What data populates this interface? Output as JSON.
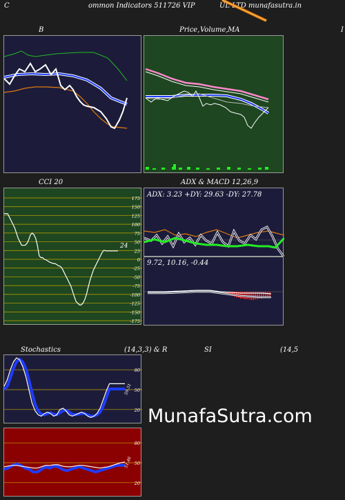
{
  "header": {
    "left_letter": "C",
    "text_a": "ommon  Indicators 511726  VIP",
    "text_b": "UL LTD munafasutra.in"
  },
  "panels": {
    "bollinger": {
      "title": "B"
    },
    "price": {
      "title_a": "Price,",
      "title_b": "Volume,",
      "title_c": "MA",
      "right_letter": "I"
    },
    "cci": {
      "title": "CCI 20",
      "value_label": "24",
      "ticks": [
        "175",
        "150",
        "125",
        "100",
        "75",
        "50",
        "25",
        "0",
        "-25",
        "-50",
        "-75",
        "-100",
        "-125",
        "-150",
        "-175"
      ]
    },
    "adx_macd": {
      "title": "ADX  & MACD 12,26,9",
      "adx_text": "ADX: 3.23 +DY: 29.63 -DY: 27.78",
      "macd_text": "9.72,  10.16,  -0.44"
    },
    "stochastics": {
      "title_a": "Stochastics",
      "title_b": "(14,3,3) & R",
      "ticks": [
        "80",
        "50",
        "20"
      ],
      "value_label": "59,51"
    },
    "rsi": {
      "title_a": "SI",
      "title_b": "(14,5",
      "ticks": [
        "80",
        "50",
        "20"
      ],
      "value_label": "51,46"
    }
  },
  "watermark": "MunafaSutra.com",
  "colors": {
    "navy": "#1c1c3a",
    "green_bg": "#1e4620",
    "red_bg": "#8b0000",
    "white": "#ffffff",
    "blue": "#1e3cff",
    "orange": "#e07a10",
    "lime": "#22ee22",
    "pink": "#ff88cc"
  },
  "chart_data": [
    {
      "type": "line",
      "title": "CCI 20",
      "ylim": [
        -175,
        175
      ],
      "x": [
        0,
        1,
        2,
        3,
        4,
        5,
        6,
        7,
        8,
        9,
        10,
        11,
        12,
        13,
        14,
        15,
        16,
        17,
        18,
        19,
        20,
        21,
        22,
        23,
        24,
        25,
        26,
        27,
        28,
        29,
        30,
        31,
        32,
        33,
        34,
        35,
        36,
        37,
        38,
        39,
        40,
        41,
        42,
        43,
        44,
        45,
        46,
        47,
        48,
        49,
        50,
        51,
        52,
        53,
        54,
        55,
        56,
        57,
        58,
        59,
        60,
        61,
        62,
        63,
        64,
        65
      ],
      "series": [
        {
          "values": [
            130,
            130,
            130,
            120,
            110,
            100,
            90,
            75,
            60,
            50,
            40,
            40,
            40,
            45,
            55,
            70,
            75,
            70,
            60,
            40,
            10,
            5,
            5,
            0,
            -2,
            -5,
            -8,
            -10,
            -12,
            -12,
            -15,
            -18,
            -20,
            -25,
            -35,
            -45,
            -55,
            -65,
            -75,
            -90,
            -105,
            -120,
            -125,
            -130,
            -130,
            -125,
            -115,
            -100,
            -80,
            -60,
            -45,
            -30,
            -20,
            -10,
            0,
            10,
            20,
            26,
            24,
            24,
            24,
            24,
            24,
            24,
            24,
            24
          ]
        }
      ]
    },
    {
      "type": "line",
      "title": "Stochastics (14,3,3)",
      "ylim": [
        0,
        100
      ],
      "x": [
        0,
        1,
        2,
        3,
        4,
        5,
        6,
        7,
        8,
        9,
        10,
        11,
        12,
        13,
        14,
        15,
        16,
        17,
        18,
        19,
        20,
        21,
        22,
        23,
        24,
        25,
        26,
        27,
        28,
        29,
        30,
        31,
        32,
        33,
        34,
        35,
        36,
        37,
        38,
        39
      ],
      "series": [
        {
          "values": [
            55,
            65,
            80,
            92,
            98,
            95,
            85,
            70,
            50,
            30,
            18,
            12,
            10,
            14,
            16,
            14,
            10,
            12,
            20,
            22,
            18,
            12,
            10,
            12,
            14,
            16,
            14,
            10,
            8,
            10,
            14,
            22,
            35,
            48,
            59,
            59,
            59,
            59,
            59,
            59
          ]
        },
        {
          "values": [
            50,
            55,
            68,
            82,
            92,
            96,
            92,
            82,
            65,
            45,
            28,
            18,
            13,
            12,
            14,
            15,
            13,
            12,
            15,
            18,
            19,
            16,
            13,
            12,
            13,
            14,
            14,
            12,
            10,
            10,
            12,
            16,
            25,
            38,
            51,
            51,
            51,
            51,
            51,
            51
          ]
        }
      ]
    },
    {
      "type": "line",
      "title": "RSI (14)",
      "ylim": [
        0,
        100
      ],
      "x": [
        0,
        1,
        2,
        3,
        4,
        5,
        6,
        7,
        8,
        9,
        10,
        11,
        12,
        13,
        14,
        15,
        16,
        17,
        18,
        19,
        20,
        21,
        22,
        23,
        24,
        25,
        26,
        27,
        28,
        29
      ],
      "series": [
        {
          "values": [
            44,
            45,
            46,
            46,
            45,
            44,
            43,
            42,
            42,
            44,
            46,
            46,
            47,
            47,
            45,
            44,
            44,
            45,
            46,
            46,
            45,
            44,
            43,
            42,
            43,
            44,
            46,
            48,
            50,
            51
          ]
        },
        {
          "values": [
            40,
            42,
            46,
            48,
            46,
            42,
            40,
            36,
            36,
            40,
            44,
            42,
            45,
            44,
            40,
            38,
            40,
            42,
            44,
            42,
            40,
            38,
            36,
            38,
            40,
            42,
            44,
            46,
            46,
            46
          ]
        }
      ]
    }
  ]
}
